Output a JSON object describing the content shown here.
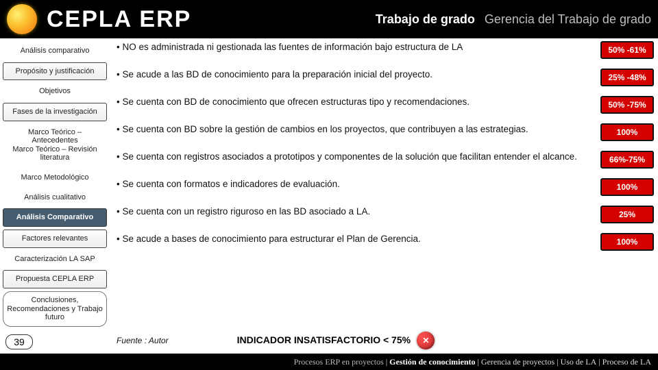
{
  "header": {
    "brand": "CEPLA ERP",
    "sub1": "Trabajo de grado",
    "sub2": "Gerencia del Trabajo de grado"
  },
  "sidebar": {
    "items": [
      {
        "label": "Análisis comparativo",
        "style": "plain"
      },
      {
        "label": "Propósito y justificación",
        "style": "boxed"
      },
      {
        "label": "Objetivos",
        "style": "plain"
      },
      {
        "label": "Fases de la investigación",
        "style": "boxed"
      },
      {
        "label": "Marco Teórico – Antecedentes\nMarco Teórico – Revisión literatura",
        "style": "plain"
      },
      {
        "label": "Marco Metodológico",
        "style": "plain"
      },
      {
        "label": "Análisis cualitativo",
        "style": "plain"
      },
      {
        "label": "Análisis Comparativo",
        "style": "active"
      },
      {
        "label": "Factores relevantes",
        "style": "boxed"
      },
      {
        "label": "Caracterización LA SAP",
        "style": "plain"
      },
      {
        "label": "Propuesta CEPLA ERP",
        "style": "boxed"
      },
      {
        "label": "Conclusiones, Recomendaciones y Trabajo futuro",
        "style": "pill"
      }
    ],
    "page": "39"
  },
  "rows": [
    {
      "text": "NO es administrada ni gestionada las fuentes de información bajo estructura de LA",
      "badge": "50% -61%"
    },
    {
      "text": "Se acude a las BD de conocimiento para la preparación inicial del proyecto.",
      "badge": "25% -48%"
    },
    {
      "text": "Se cuenta con BD de conocimiento que ofrecen estructuras tipo y recomendaciones.",
      "badge": "50% -75%"
    },
    {
      "text": "Se cuenta con BD sobre la gestión de cambios en los proyectos, que contribuyen a las estrategias.",
      "badge": "100%"
    },
    {
      "text": "Se cuenta con registros asociados a prototipos y componentes de la solución que facilitan entender el alcance.",
      "badge": "66%-75%"
    },
    {
      "text": "Se cuenta con formatos e indicadores de evaluación.",
      "badge": "100%"
    },
    {
      "text": "Se cuenta con un registro riguroso en las BD asociado a LA.",
      "badge": "25%"
    },
    {
      "text": "Se acude a bases de conocimiento para estructurar el Plan de Gerencia.",
      "badge": "100%"
    }
  ],
  "indicator": {
    "fuente": "Fuente : Autor",
    "label": "INDICADOR  INSATISFACTORIO < 75%"
  },
  "footer": {
    "prefix": "Procesos ERP en proyectos",
    "parts": [
      "Gestión de conocimiento",
      "Gerencia de proyectos",
      "Uso de LA",
      "Proceso de LA"
    ]
  },
  "colors": {
    "badge_bg": "#d50000",
    "active_bg": "#465d70",
    "header_bg": "#000000"
  }
}
